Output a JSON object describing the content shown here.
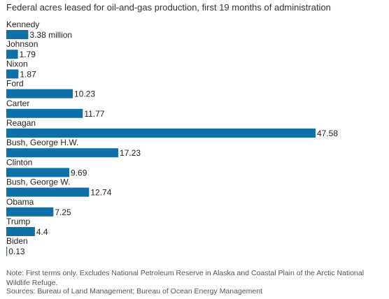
{
  "chart_data": {
    "type": "bar",
    "orientation": "horizontal",
    "title": "Federal acres leased for oil-and-gas production, first 19 months of administration",
    "categories": [
      "Kennedy",
      "Johnson",
      "Nixon",
      "Ford",
      "Carter",
      "Reagan",
      "Bush, George H.W.",
      "Clinton",
      "Bush, George W.",
      "Obama",
      "Trump",
      "Biden"
    ],
    "values": [
      3.38,
      1.79,
      1.87,
      10.23,
      11.77,
      47.58,
      17.23,
      9.69,
      12.74,
      7.25,
      4.4,
      0.13
    ],
    "value_labels": [
      "3.38 million",
      "1.79",
      "1.87",
      "10.23",
      "11.77",
      "47.58",
      "17.23",
      "9.69",
      "12.74",
      "7.25",
      "4.4",
      "0.13"
    ],
    "xlim": [
      0,
      47.58
    ],
    "grid": false,
    "bar_color": "#0f6fa8"
  },
  "note": "Note: First terms only. Excludes National Petroleum Reserve in Alaska and Coastal Plain of the Arctic National Wildlife Refuge.",
  "sources": "Sources: Bureau of Land Management; Bureau of Ocean Energy Management"
}
